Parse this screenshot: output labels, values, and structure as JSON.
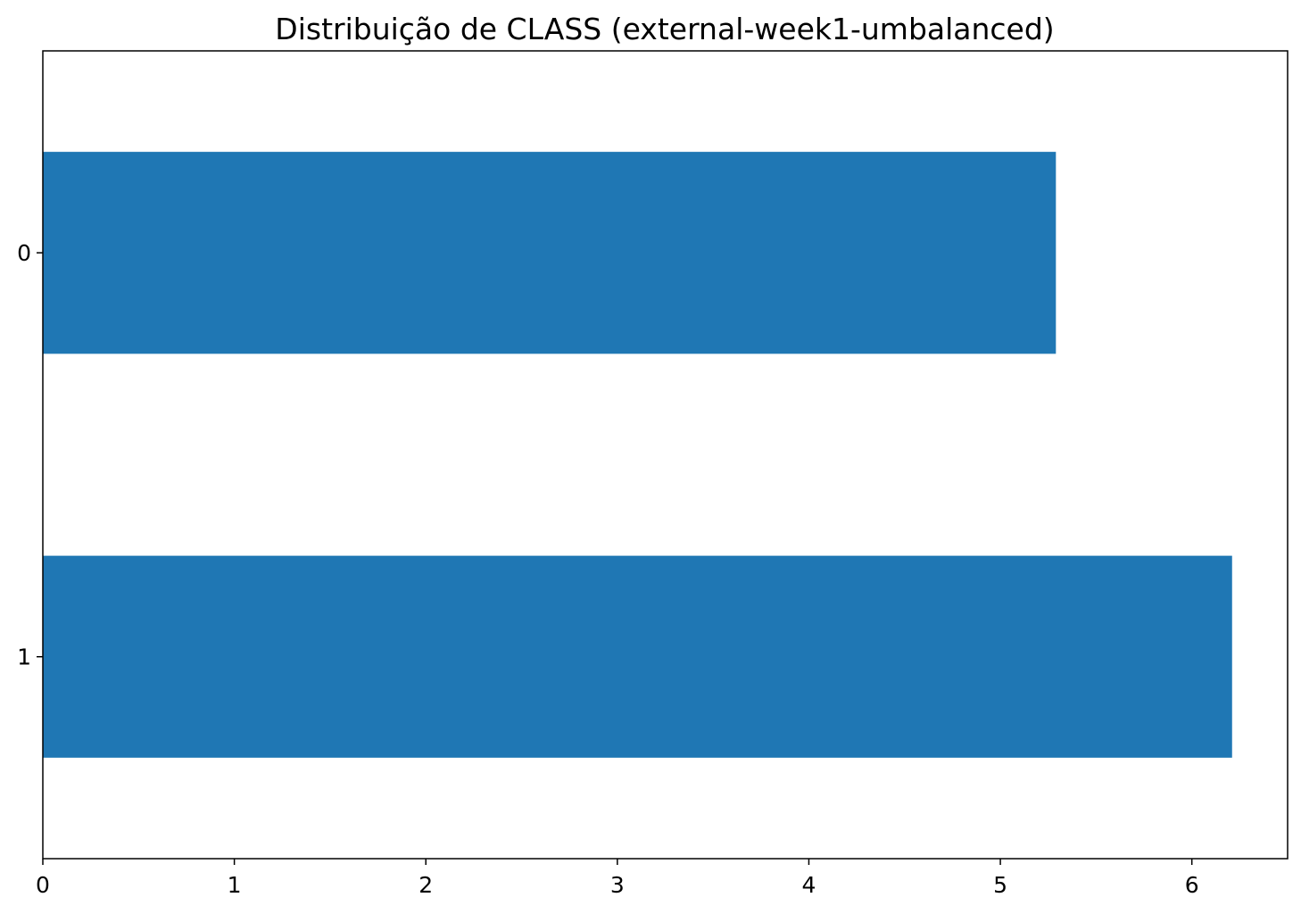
{
  "chart_data": {
    "type": "bar",
    "orientation": "horizontal",
    "title": "Distribuição de CLASS (external-week1-umbalanced)",
    "xlabel": "",
    "ylabel": "",
    "categories": [
      "0",
      "1"
    ],
    "values": [
      5.29,
      6.21
    ],
    "xlim": [
      0,
      6.5
    ],
    "x_ticks": [
      "0",
      "1",
      "2",
      "3",
      "4",
      "5",
      "6"
    ],
    "grid": false,
    "legend": "none",
    "colors": {
      "bar": "#1f77b4",
      "axis": "#000000",
      "background": "#ffffff"
    }
  }
}
